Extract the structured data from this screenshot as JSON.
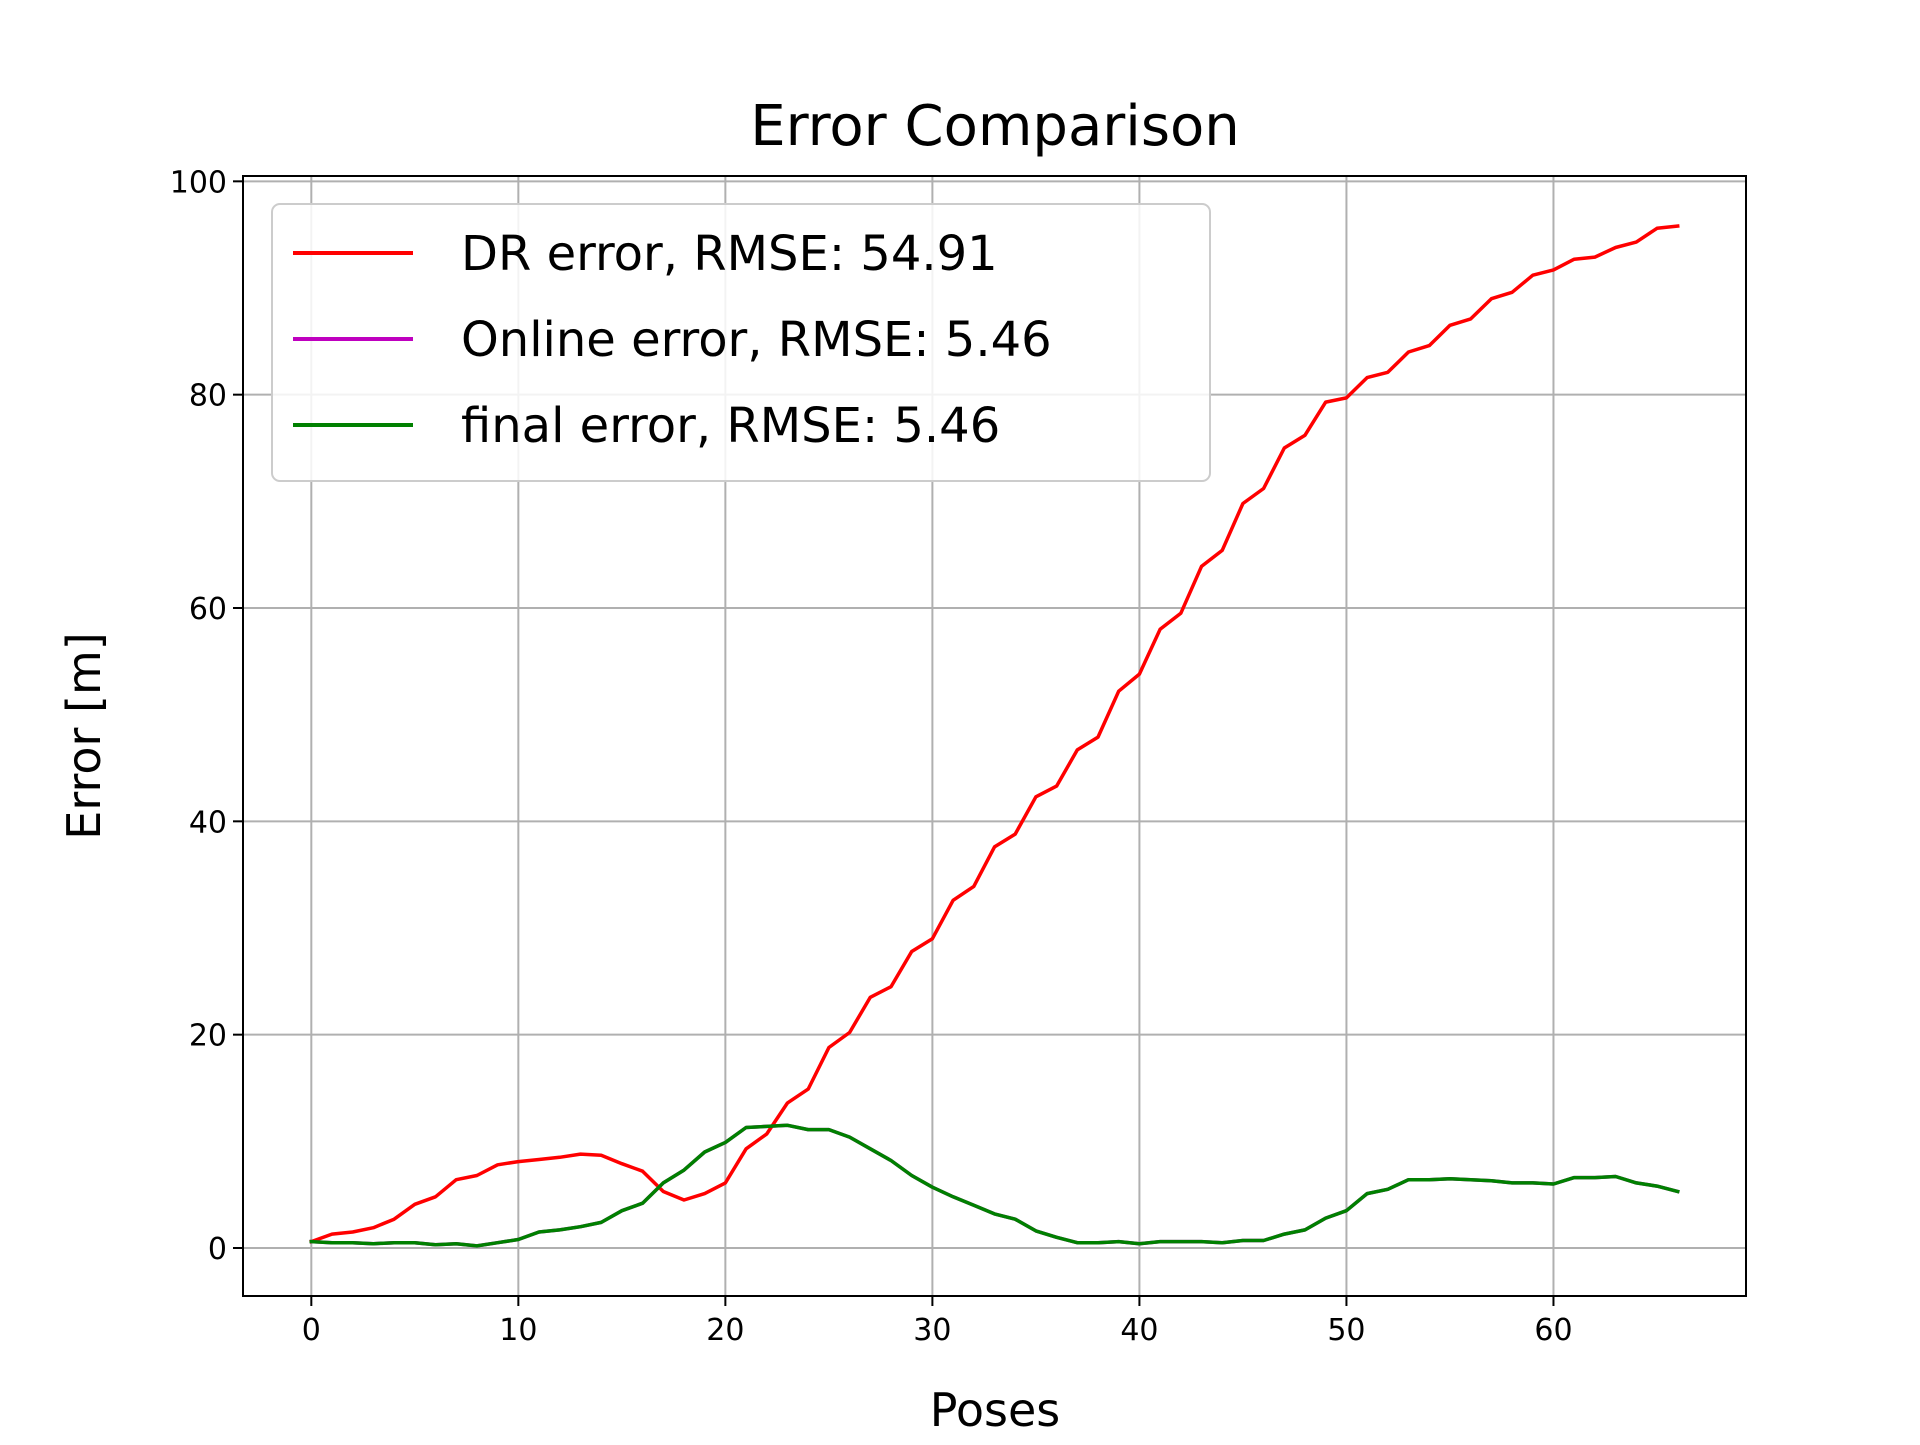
{
  "chart_data": {
    "type": "line",
    "title": "Error Comparison",
    "xlabel": "Poses",
    "ylabel": "Error [m]",
    "xlim": [
      -3.3,
      69.3
    ],
    "ylim": [
      -4.5,
      100.5
    ],
    "xticks": [
      0,
      10,
      20,
      30,
      40,
      50,
      60
    ],
    "yticks": [
      0,
      20,
      40,
      60,
      80,
      100
    ],
    "grid": true,
    "legend_position": "top-left",
    "x": [
      0,
      1,
      2,
      3,
      4,
      5,
      6,
      7,
      8,
      9,
      10,
      11,
      12,
      13,
      14,
      15,
      16,
      17,
      18,
      19,
      20,
      21,
      22,
      23,
      24,
      25,
      26,
      27,
      28,
      29,
      30,
      31,
      32,
      33,
      34,
      35,
      36,
      37,
      38,
      39,
      40,
      41,
      42,
      43,
      44,
      45,
      46,
      47,
      48,
      49,
      50,
      51,
      52,
      53,
      54,
      55,
      56,
      57,
      58,
      59,
      60,
      61,
      62,
      63,
      64,
      65,
      66
    ],
    "series": [
      {
        "name": "DR error, RMSE: 54.91",
        "color": "#ff0000",
        "values": [
          0.6,
          1.3,
          1.5,
          1.9,
          2.7,
          4.1,
          4.8,
          6.4,
          6.8,
          7.8,
          8.1,
          8.3,
          8.5,
          8.8,
          8.7,
          7.9,
          7.2,
          5.3,
          4.5,
          5.1,
          6.1,
          9.3,
          10.7,
          13.6,
          14.9,
          18.8,
          20.2,
          23.5,
          24.5,
          27.8,
          29.0,
          32.6,
          33.9,
          37.6,
          38.8,
          42.3,
          43.3,
          46.7,
          47.9,
          52.2,
          53.8,
          58.0,
          59.5,
          63.9,
          65.4,
          69.8,
          71.2,
          75.0,
          76.2,
          79.3,
          79.7,
          81.6,
          82.1,
          84.0,
          84.6,
          86.5,
          87.1,
          89.0,
          89.6,
          91.2,
          91.7,
          92.7,
          92.9,
          93.8,
          94.3,
          95.6,
          95.8
        ]
      },
      {
        "name": "Online error, RMSE: 5.46",
        "color": "#bf00bf",
        "values": [
          0.6,
          0.5,
          0.5,
          0.4,
          0.5,
          0.5,
          0.3,
          0.4,
          0.2,
          0.5,
          0.8,
          1.5,
          1.7,
          2.0,
          2.4,
          3.5,
          4.2,
          6.1,
          7.3,
          9.0,
          9.9,
          11.3,
          11.4,
          11.5,
          11.1,
          11.1,
          10.4,
          9.3,
          8.2,
          6.8,
          5.7,
          4.8,
          4.0,
          3.2,
          2.7,
          1.6,
          1.0,
          0.5,
          0.5,
          0.6,
          0.4,
          0.6,
          0.6,
          0.6,
          0.5,
          0.7,
          0.7,
          1.3,
          1.7,
          2.8,
          3.5,
          5.1,
          5.5,
          6.4,
          6.4,
          6.5,
          6.4,
          6.3,
          6.1,
          6.1,
          6.0,
          6.6,
          6.6,
          6.7,
          6.1,
          5.8,
          5.3
        ]
      },
      {
        "name": "final error, RMSE: 5.46",
        "color": "#008000",
        "values": [
          0.6,
          0.5,
          0.5,
          0.4,
          0.5,
          0.5,
          0.3,
          0.4,
          0.2,
          0.5,
          0.8,
          1.5,
          1.7,
          2.0,
          2.4,
          3.5,
          4.2,
          6.1,
          7.3,
          9.0,
          9.9,
          11.3,
          11.4,
          11.5,
          11.1,
          11.1,
          10.4,
          9.3,
          8.2,
          6.8,
          5.7,
          4.8,
          4.0,
          3.2,
          2.7,
          1.6,
          1.0,
          0.5,
          0.5,
          0.6,
          0.4,
          0.6,
          0.6,
          0.6,
          0.5,
          0.7,
          0.7,
          1.3,
          1.7,
          2.8,
          3.5,
          5.1,
          5.5,
          6.4,
          6.4,
          6.5,
          6.4,
          6.3,
          6.1,
          6.1,
          6.0,
          6.6,
          6.6,
          6.7,
          6.1,
          5.8,
          5.3
        ]
      }
    ]
  }
}
